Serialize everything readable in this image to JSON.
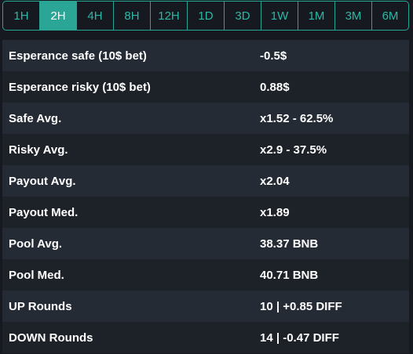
{
  "timeframes": {
    "options": [
      "1H",
      "2H",
      "4H",
      "8H",
      "12H",
      "1D",
      "3D",
      "1W",
      "1M",
      "3M",
      "6M"
    ],
    "selected": "2H"
  },
  "stats": {
    "rows": [
      {
        "label": "Esperance safe (10$ bet)",
        "value": "-0.5$"
      },
      {
        "label": "Esperance risky (10$ bet)",
        "value": "0.88$"
      },
      {
        "label": "Safe Avg.",
        "value": "x1.52 - 62.5%"
      },
      {
        "label": "Risky Avg.",
        "value": "x2.9 - 37.5%"
      },
      {
        "label": "Payout Avg.",
        "value": "x2.04"
      },
      {
        "label": "Payout Med.",
        "value": "x1.89"
      },
      {
        "label": "Pool Avg.",
        "value": "38.37 BNB"
      },
      {
        "label": "Pool Med.",
        "value": "40.71 BNB"
      },
      {
        "label": "UP Rounds",
        "value": "10 | +0.85 DIFF"
      },
      {
        "label": "DOWN Rounds",
        "value": "14 | -0.47 DIFF"
      }
    ]
  },
  "colors": {
    "accent": "#2aa596",
    "background": "#161a20",
    "row_odd": "#252b35",
    "row_even": "#1d2229"
  }
}
